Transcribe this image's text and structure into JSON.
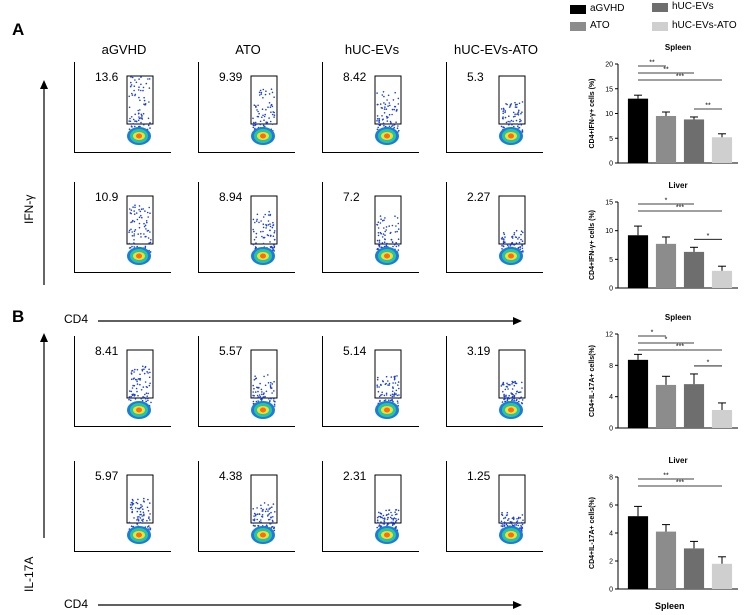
{
  "panels": {
    "A": "A",
    "B": "B"
  },
  "columns": [
    "aGVHD",
    "ATO",
    "hUC-EVs",
    "hUC-EVs-ATO"
  ],
  "rows": [
    {
      "y_axis": "IFN-γ",
      "values": [
        "13.6",
        "9.39",
        "8.42",
        "5.3"
      ]
    },
    {
      "y_axis": "IFN-γ",
      "values": [
        "10.9",
        "8.94",
        "7.2",
        "2.27"
      ]
    },
    {
      "y_axis": "IL-17A",
      "values": [
        "8.41",
        "5.57",
        "5.14",
        "3.19"
      ]
    },
    {
      "y_axis": "IL-17A",
      "values": [
        "5.97",
        "4.38",
        "2.31",
        "1.25"
      ]
    }
  ],
  "axis_labels": {
    "ifn": "IFN-γ",
    "il17": "IL-17A",
    "cd4_a": "CD4",
    "cd4_b": "CD4"
  },
  "legend": [
    {
      "label": "aGVHD",
      "color": "#000000"
    },
    {
      "label": "ATO",
      "color": "#8c8c8c"
    },
    {
      "label": "hUC-EVs",
      "color": "#6e6e6e"
    },
    {
      "label": "hUC-EVs-ATO",
      "color": "#cfcfcf"
    }
  ],
  "footer": {
    "spleen_label": "Spleen"
  },
  "chart_data": [
    {
      "type": "bar",
      "title": "Spleen",
      "ylabel": "CD4+IFN-γ+ cells (%)",
      "categories": [
        "aGVHD",
        "ATO",
        "hUC-EVs",
        "hUC-EVs-ATO"
      ],
      "values": [
        13.0,
        9.5,
        8.8,
        5.2
      ],
      "errors": [
        0.7,
        0.8,
        0.5,
        0.7
      ],
      "colors": [
        "#000000",
        "#8c8c8c",
        "#6e6e6e",
        "#cfcfcf"
      ],
      "ylim": [
        0,
        20
      ],
      "yticks": [
        "0",
        "5",
        "10",
        "15",
        "20"
      ],
      "significance": [
        {
          "from": 0,
          "to": 1,
          "label": "**"
        },
        {
          "from": 0,
          "to": 2,
          "label": "**"
        },
        {
          "from": 0,
          "to": 3,
          "label": "***"
        },
        {
          "from": 2,
          "to": 3,
          "label": "**"
        }
      ]
    },
    {
      "type": "bar",
      "title": "Liver",
      "ylabel": "CD4+IFN-γ+ cells (%)",
      "categories": [
        "aGVHD",
        "ATO",
        "hUC-EVs",
        "hUC-EVs-ATO"
      ],
      "values": [
        9.2,
        7.7,
        6.3,
        3.0
      ],
      "errors": [
        1.6,
        1.2,
        0.8,
        0.8
      ],
      "colors": [
        "#000000",
        "#8c8c8c",
        "#6e6e6e",
        "#cfcfcf"
      ],
      "ylim": [
        0,
        15
      ],
      "yticks": [
        "0",
        "5",
        "10",
        "15"
      ],
      "significance": [
        {
          "from": 0,
          "to": 2,
          "label": "*"
        },
        {
          "from": 0,
          "to": 3,
          "label": "***"
        },
        {
          "from": 2,
          "to": 3,
          "label": "*"
        }
      ]
    },
    {
      "type": "bar",
      "title": "Spleen",
      "ylabel": "CD4+IL-17A+ cells(%)",
      "categories": [
        "aGVHD",
        "ATO",
        "hUC-EVs",
        "hUC-EVs-ATO"
      ],
      "values": [
        8.7,
        5.5,
        5.6,
        2.3
      ],
      "errors": [
        0.7,
        1.1,
        1.3,
        0.9
      ],
      "colors": [
        "#000000",
        "#8c8c8c",
        "#6e6e6e",
        "#cfcfcf"
      ],
      "ylim": [
        0,
        12
      ],
      "yticks": [
        "0",
        "4",
        "8",
        "12"
      ],
      "significance": [
        {
          "from": 0,
          "to": 1,
          "label": "*"
        },
        {
          "from": 0,
          "to": 2,
          "label": "*"
        },
        {
          "from": 0,
          "to": 3,
          "label": "***"
        },
        {
          "from": 2,
          "to": 3,
          "label": "*"
        }
      ]
    },
    {
      "type": "bar",
      "title": "Liver",
      "ylabel": "CD4+IL-17A+ cells(%)",
      "categories": [
        "aGVHD",
        "ATO",
        "hUC-EVs",
        "hUC-EVs-ATO"
      ],
      "values": [
        5.2,
        4.1,
        2.9,
        1.8
      ],
      "errors": [
        0.7,
        0.5,
        0.5,
        0.5
      ],
      "colors": [
        "#000000",
        "#8c8c8c",
        "#6e6e6e",
        "#cfcfcf"
      ],
      "ylim": [
        0,
        8
      ],
      "yticks": [
        "0",
        "2",
        "4",
        "6",
        "8"
      ],
      "significance": [
        {
          "from": 0,
          "to": 2,
          "label": "**"
        },
        {
          "from": 0,
          "to": 3,
          "label": "***"
        }
      ]
    }
  ]
}
